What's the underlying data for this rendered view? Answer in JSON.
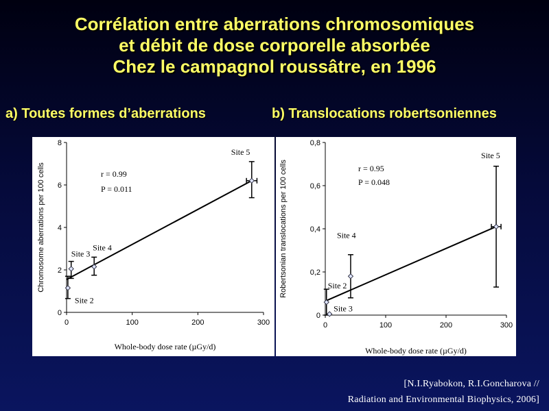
{
  "title": {
    "line1": "Corrélation entre aberrations chromosomiques",
    "line2": "et débit de dose corporelle absorbée",
    "line3": "Chez le campagnol roussâtre, en 1996"
  },
  "panel_a_heading": "a) Toutes formes d’aberrations",
  "panel_b_heading": "b) Translocations robertsoniennes",
  "citation": {
    "line1": "[N.I.Ryabokon, R.I.Goncharova //",
    "line2": "Radiation and Environmental Biophysics, 2006]"
  },
  "chart_data": [
    {
      "type": "scatter",
      "xlabel": "Whole-body dose rate (µGy/d)",
      "ylabel": "Chromosome aberrations per 100 cells",
      "xlim": [
        0,
        300
      ],
      "ylim": [
        0,
        8
      ],
      "xticks": [
        "0",
        "100",
        "200",
        "300"
      ],
      "yticks": [
        "0",
        "2",
        "4",
        "6",
        "8"
      ],
      "stats": [
        "r = 0.99",
        "P = 0.011"
      ],
      "points": [
        {
          "label": "Site 2",
          "x": 2,
          "y": 1.15,
          "err_low": 0.5,
          "err_high": 0.55,
          "xerr": 0
        },
        {
          "label": "Site 3",
          "x": 7,
          "y": 2.05,
          "err_low": 0.45,
          "err_high": 0.35,
          "xerr": 0
        },
        {
          "label": "Site 4",
          "x": 42,
          "y": 2.15,
          "err_low": 0.4,
          "err_high": 0.45,
          "xerr": 0
        },
        {
          "label": "Site 5",
          "x": 282,
          "y": 6.2,
          "err_low": 0.8,
          "err_high": 0.9,
          "xerr": 8
        }
      ],
      "fit": {
        "x": [
          0,
          282
        ],
        "y": [
          1.55,
          6.2
        ]
      }
    },
    {
      "type": "scatter",
      "xlabel": "Whole-body dose rate (µGy/d)",
      "ylabel": "Robertsonian translocations per 100 cells",
      "xlim": [
        0,
        300
      ],
      "ylim": [
        0,
        0.8
      ],
      "xticks": [
        "0",
        "100",
        "200",
        "300"
      ],
      "yticks": [
        "0",
        "0,2",
        "0,4",
        "0,6",
        "0,8"
      ],
      "stats": [
        "r = 0.95",
        "P = 0.048"
      ],
      "points": [
        {
          "label": "Site 2",
          "x": 2,
          "y": 0.06,
          "err_low": 0.06,
          "err_high": 0.06,
          "xerr": 0
        },
        {
          "label": "Site 3",
          "x": 7,
          "y": 0.005,
          "err_low": 0,
          "err_high": 0,
          "xerr": 0
        },
        {
          "label": "Site 4",
          "x": 42,
          "y": 0.18,
          "err_low": 0.1,
          "err_high": 0.1,
          "xerr": 0
        },
        {
          "label": "Site 5",
          "x": 283,
          "y": 0.41,
          "err_low": 0.28,
          "err_high": 0.28,
          "xerr": 8
        }
      ],
      "fit": {
        "x": [
          0,
          283
        ],
        "y": [
          0.065,
          0.41
        ]
      }
    }
  ]
}
